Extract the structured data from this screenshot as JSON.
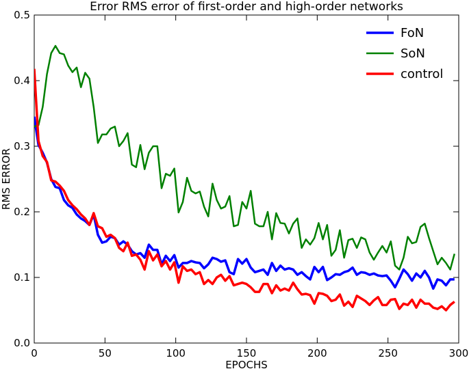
{
  "chart_data": {
    "type": "line",
    "title": "Error RMS error of first-order and high-order networks",
    "xlabel": "EPOCHS",
    "ylabel": "RMS ERROR",
    "xlim": [
      0,
      300
    ],
    "ylim": [
      0,
      0.5
    ],
    "xticks": [
      0,
      50,
      100,
      150,
      200,
      250,
      300
    ],
    "yticks": [
      0.0,
      0.1,
      0.2,
      0.3,
      0.4,
      0.5
    ],
    "xtick_labels": [
      "0",
      "50",
      "100",
      "150",
      "200",
      "250",
      "300"
    ],
    "ytick_labels": [
      "0.0",
      "0.1",
      "0.2",
      "0.3",
      "0.4",
      "0.5"
    ],
    "grid": false,
    "legend_position": "top-right",
    "series": [
      {
        "name": "FoN",
        "color": "#0000ff",
        "x": [
          0,
          3,
          6,
          9,
          12,
          15,
          18,
          21,
          24,
          27,
          30,
          33,
          36,
          39,
          42,
          45,
          48,
          51,
          54,
          57,
          60,
          63,
          66,
          69,
          72,
          75,
          78,
          81,
          84,
          87,
          90,
          93,
          96,
          99,
          102,
          105,
          108,
          111,
          114,
          117,
          120,
          123,
          126,
          129,
          132,
          135,
          138,
          141,
          144,
          147,
          150,
          153,
          156,
          159,
          162,
          165,
          168,
          171,
          174,
          177,
          180,
          183,
          186,
          189,
          192,
          195,
          198,
          201,
          204,
          207,
          210,
          213,
          216,
          219,
          222,
          225,
          228,
          231,
          234,
          237,
          240,
          243,
          246,
          249,
          252,
          255,
          258,
          261,
          264,
          267,
          270,
          273,
          276,
          279,
          282,
          285,
          288,
          291,
          294,
          297
        ],
        "y": [
          0.345,
          0.302,
          0.29,
          0.275,
          0.25,
          0.238,
          0.236,
          0.218,
          0.21,
          0.206,
          0.196,
          0.19,
          0.186,
          0.18,
          0.196,
          0.165,
          0.153,
          0.155,
          0.162,
          0.16,
          0.15,
          0.155,
          0.15,
          0.14,
          0.135,
          0.137,
          0.13,
          0.15,
          0.142,
          0.142,
          0.12,
          0.133,
          0.125,
          0.134,
          0.115,
          0.122,
          0.122,
          0.125,
          0.123,
          0.122,
          0.114,
          0.12,
          0.13,
          0.128,
          0.124,
          0.126,
          0.108,
          0.105,
          0.128,
          0.121,
          0.128,
          0.115,
          0.108,
          0.11,
          0.112,
          0.104,
          0.122,
          0.11,
          0.118,
          0.112,
          0.114,
          0.112,
          0.104,
          0.108,
          0.102,
          0.097,
          0.116,
          0.108,
          0.116,
          0.096,
          0.1,
          0.105,
          0.104,
          0.108,
          0.11,
          0.115,
          0.104,
          0.108,
          0.107,
          0.104,
          0.106,
          0.103,
          0.102,
          0.103,
          0.095,
          0.085,
          0.098,
          0.112,
          0.105,
          0.095,
          0.106,
          0.1,
          0.11,
          0.1,
          0.083,
          0.097,
          0.095,
          0.088,
          0.097,
          0.097
        ]
      },
      {
        "name": "SoN",
        "color": "#008000",
        "x": [
          0,
          3,
          6,
          9,
          12,
          15,
          18,
          21,
          24,
          27,
          30,
          33,
          36,
          39,
          42,
          45,
          48,
          51,
          54,
          57,
          60,
          63,
          66,
          69,
          72,
          75,
          78,
          81,
          84,
          87,
          90,
          93,
          96,
          99,
          102,
          105,
          108,
          111,
          114,
          117,
          120,
          123,
          126,
          129,
          132,
          135,
          138,
          141,
          144,
          147,
          150,
          153,
          156,
          159,
          162,
          165,
          168,
          171,
          174,
          177,
          180,
          183,
          186,
          189,
          192,
          195,
          198,
          201,
          204,
          207,
          210,
          213,
          216,
          219,
          222,
          225,
          228,
          231,
          234,
          237,
          240,
          243,
          246,
          249,
          252,
          255,
          258,
          261,
          264,
          267,
          270,
          273,
          276,
          279,
          282,
          285,
          288,
          291,
          294,
          297
        ],
        "y": [
          0.33,
          0.332,
          0.36,
          0.41,
          0.442,
          0.453,
          0.442,
          0.44,
          0.423,
          0.413,
          0.42,
          0.39,
          0.412,
          0.403,
          0.36,
          0.305,
          0.318,
          0.318,
          0.327,
          0.33,
          0.3,
          0.308,
          0.32,
          0.272,
          0.268,
          0.302,
          0.265,
          0.29,
          0.3,
          0.3,
          0.236,
          0.258,
          0.255,
          0.266,
          0.199,
          0.215,
          0.252,
          0.232,
          0.228,
          0.231,
          0.208,
          0.193,
          0.243,
          0.218,
          0.205,
          0.208,
          0.224,
          0.178,
          0.18,
          0.215,
          0.205,
          0.232,
          0.182,
          0.178,
          0.178,
          0.2,
          0.158,
          0.198,
          0.183,
          0.182,
          0.167,
          0.182,
          0.19,
          0.145,
          0.158,
          0.15,
          0.16,
          0.183,
          0.158,
          0.18,
          0.133,
          0.142,
          0.172,
          0.13,
          0.157,
          0.159,
          0.145,
          0.161,
          0.158,
          0.138,
          0.127,
          0.138,
          0.148,
          0.138,
          0.155,
          0.118,
          0.112,
          0.13,
          0.162,
          0.152,
          0.154,
          0.177,
          0.182,
          0.16,
          0.14,
          0.12,
          0.13,
          0.122,
          0.112,
          0.136
        ]
      },
      {
        "name": "control",
        "color": "#ff0000",
        "x": [
          0,
          3,
          6,
          9,
          12,
          15,
          18,
          21,
          24,
          27,
          30,
          33,
          36,
          39,
          42,
          45,
          48,
          51,
          54,
          57,
          60,
          63,
          66,
          69,
          72,
          75,
          78,
          81,
          84,
          87,
          90,
          93,
          96,
          99,
          102,
          105,
          108,
          111,
          114,
          117,
          120,
          123,
          126,
          129,
          132,
          135,
          138,
          141,
          144,
          147,
          150,
          153,
          156,
          159,
          162,
          165,
          168,
          171,
          174,
          177,
          180,
          183,
          186,
          189,
          192,
          195,
          198,
          201,
          204,
          207,
          210,
          213,
          216,
          219,
          222,
          225,
          228,
          231,
          234,
          237,
          240,
          243,
          246,
          249,
          252,
          255,
          258,
          261,
          264,
          267,
          270,
          273,
          276,
          279,
          282,
          285,
          288,
          291,
          294,
          297
        ],
        "y": [
          0.418,
          0.308,
          0.285,
          0.276,
          0.248,
          0.246,
          0.24,
          0.232,
          0.218,
          0.21,
          0.204,
          0.196,
          0.19,
          0.18,
          0.198,
          0.178,
          0.175,
          0.162,
          0.165,
          0.16,
          0.145,
          0.14,
          0.153,
          0.133,
          0.135,
          0.127,
          0.112,
          0.14,
          0.126,
          0.135,
          0.117,
          0.125,
          0.112,
          0.123,
          0.092,
          0.117,
          0.11,
          0.112,
          0.105,
          0.108,
          0.09,
          0.096,
          0.09,
          0.1,
          0.104,
          0.095,
          0.102,
          0.088,
          0.09,
          0.092,
          0.09,
          0.085,
          0.078,
          0.078,
          0.09,
          0.09,
          0.076,
          0.088,
          0.08,
          0.083,
          0.08,
          0.092,
          0.082,
          0.074,
          0.075,
          0.073,
          0.06,
          0.076,
          0.075,
          0.072,
          0.064,
          0.066,
          0.074,
          0.057,
          0.063,
          0.055,
          0.072,
          0.068,
          0.064,
          0.058,
          0.065,
          0.07,
          0.058,
          0.058,
          0.066,
          0.067,
          0.052,
          0.06,
          0.058,
          0.066,
          0.054,
          0.066,
          0.06,
          0.06,
          0.054,
          0.052,
          0.056,
          0.05,
          0.058,
          0.063
        ]
      }
    ]
  }
}
